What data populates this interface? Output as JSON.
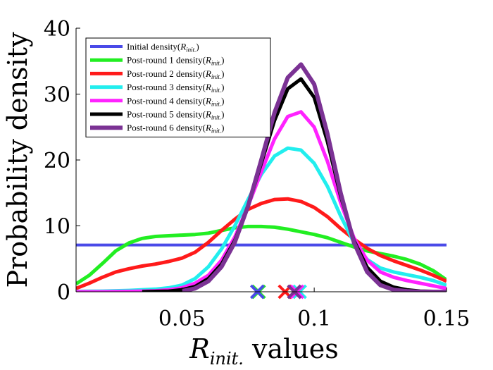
{
  "chart_data": {
    "type": "line",
    "title": "",
    "xlabel": "R_init. values",
    "xlabel_parts": {
      "main": "R",
      "sub": "init.",
      "rest": " values"
    },
    "ylabel": "Probability density",
    "xlim": [
      0.01,
      0.15
    ],
    "ylim": [
      0,
      40
    ],
    "xticks": [
      0.05,
      0.1,
      0.15
    ],
    "xtick_labels": [
      "0.05",
      "0.1",
      "0.15"
    ],
    "yticks": [
      0,
      10,
      20,
      30,
      40
    ],
    "ytick_labels": [
      "0",
      "10",
      "20",
      "30",
      "40"
    ],
    "grid": false,
    "legend_position": "top-left",
    "series": [
      {
        "name": "Initial density(R_init.)",
        "legend_parts": {
          "main": "Initial density(",
          "sym": "R",
          "sub": "init.",
          "end": ")"
        },
        "color": "#4a4ae8",
        "x": [
          0.01,
          0.15
        ],
        "y": [
          7.1,
          7.1
        ]
      },
      {
        "name": "Post-round 1 density(R_init.)",
        "legend_parts": {
          "main": "Post-round 1 density(",
          "sym": "R",
          "sub": "init.",
          "end": ")"
        },
        "color": "#22ee22",
        "x": [
          0.01,
          0.015,
          0.02,
          0.025,
          0.03,
          0.035,
          0.04,
          0.045,
          0.05,
          0.055,
          0.06,
          0.065,
          0.07,
          0.075,
          0.08,
          0.085,
          0.09,
          0.095,
          0.1,
          0.105,
          0.11,
          0.115,
          0.12,
          0.125,
          0.13,
          0.135,
          0.14,
          0.145,
          0.15
        ],
        "y": [
          1.2,
          2.5,
          4.3,
          6.2,
          7.4,
          8.1,
          8.4,
          8.5,
          8.6,
          8.7,
          8.9,
          9.3,
          9.7,
          9.9,
          9.9,
          9.8,
          9.5,
          9.1,
          8.7,
          8.2,
          7.5,
          6.8,
          6.2,
          5.8,
          5.4,
          4.9,
          4.2,
          3.2,
          1.8
        ]
      },
      {
        "name": "Post-round 2 density(R_init.)",
        "legend_parts": {
          "main": "Post-round 2 density(",
          "sym": "R",
          "sub": "init.",
          "end": ")"
        },
        "color": "#ff1a1a",
        "x": [
          0.01,
          0.015,
          0.02,
          0.025,
          0.03,
          0.035,
          0.04,
          0.045,
          0.05,
          0.055,
          0.06,
          0.065,
          0.07,
          0.075,
          0.08,
          0.085,
          0.09,
          0.095,
          0.1,
          0.105,
          0.11,
          0.115,
          0.12,
          0.125,
          0.13,
          0.135,
          0.14,
          0.145,
          0.15
        ],
        "y": [
          0.5,
          1.3,
          2.2,
          3.0,
          3.5,
          3.9,
          4.2,
          4.6,
          5.1,
          6.0,
          7.5,
          9.3,
          11.0,
          12.5,
          13.4,
          14.0,
          14.1,
          13.7,
          12.8,
          11.4,
          9.6,
          8.0,
          6.6,
          5.5,
          4.7,
          4.0,
          3.3,
          2.5,
          1.6
        ]
      },
      {
        "name": "Post-round 3 density(R_init.)",
        "legend_parts": {
          "main": "Post-round 3 density(",
          "sym": "R",
          "sub": "init.",
          "end": ")"
        },
        "color": "#22eeee",
        "x": [
          0.01,
          0.02,
          0.03,
          0.04,
          0.045,
          0.05,
          0.055,
          0.06,
          0.065,
          0.07,
          0.075,
          0.08,
          0.085,
          0.09,
          0.095,
          0.1,
          0.105,
          0.11,
          0.115,
          0.12,
          0.125,
          0.13,
          0.135,
          0.14,
          0.145,
          0.15
        ],
        "y": [
          0.05,
          0.1,
          0.2,
          0.4,
          0.6,
          1.0,
          2.0,
          3.8,
          6.5,
          10.0,
          14.0,
          17.8,
          20.6,
          21.8,
          21.5,
          19.5,
          16.0,
          11.5,
          7.5,
          4.9,
          3.6,
          3.0,
          2.6,
          2.2,
          1.7,
          1.0
        ]
      },
      {
        "name": "Post-round 4 density(R_init.)",
        "legend_parts": {
          "main": "Post-round 4 density(",
          "sym": "R",
          "sub": "init.",
          "end": ")"
        },
        "color": "#ff22ff",
        "x": [
          0.01,
          0.02,
          0.03,
          0.04,
          0.045,
          0.05,
          0.055,
          0.06,
          0.065,
          0.07,
          0.075,
          0.08,
          0.085,
          0.09,
          0.095,
          0.1,
          0.105,
          0.11,
          0.115,
          0.12,
          0.125,
          0.13,
          0.135,
          0.14,
          0.145,
          0.15
        ],
        "y": [
          0.0,
          0.0,
          0.05,
          0.15,
          0.3,
          0.6,
          1.3,
          2.5,
          4.8,
          8.3,
          13.0,
          18.2,
          23.2,
          26.6,
          27.3,
          25.0,
          19.8,
          13.5,
          8.2,
          4.8,
          3.0,
          2.2,
          1.7,
          1.3,
          0.9,
          0.5
        ]
      },
      {
        "name": "Post-round 5 density(R_init.)",
        "legend_parts": {
          "main": "Post-round 5 density(",
          "sym": "R",
          "sub": "init.",
          "end": ")"
        },
        "color": "#000000",
        "x": [
          0.035,
          0.04,
          0.045,
          0.05,
          0.055,
          0.06,
          0.065,
          0.07,
          0.075,
          0.08,
          0.085,
          0.09,
          0.095,
          0.1,
          0.105,
          0.11,
          0.115,
          0.12,
          0.125,
          0.13,
          0.135,
          0.14,
          0.145,
          0.15
        ],
        "y": [
          0.0,
          0.05,
          0.1,
          0.3,
          0.8,
          2.0,
          4.2,
          7.8,
          13.0,
          19.5,
          26.0,
          30.8,
          32.3,
          29.5,
          22.8,
          14.5,
          7.8,
          3.7,
          1.6,
          0.7,
          0.3,
          0.1,
          0.05,
          0.0
        ]
      },
      {
        "name": "Post-round 6 density(R_init.)",
        "legend_parts": {
          "main": "Post-round 6 density(",
          "sym": "R",
          "sub": "init.",
          "end": ")"
        },
        "color": "#7b3294",
        "x": [
          0.05,
          0.055,
          0.06,
          0.065,
          0.07,
          0.075,
          0.08,
          0.085,
          0.09,
          0.095,
          0.1,
          0.105,
          0.11,
          0.115,
          0.12,
          0.125,
          0.13,
          0.135,
          0.14,
          0.145,
          0.15
        ],
        "y": [
          0.1,
          0.5,
          1.6,
          3.8,
          7.5,
          13.0,
          20.0,
          27.2,
          32.5,
          34.5,
          31.5,
          24.0,
          15.0,
          7.5,
          3.0,
          1.0,
          0.3,
          0.1,
          0.0,
          0.0,
          0.0
        ]
      }
    ],
    "markers": [
      {
        "x": 0.079,
        "y": 0,
        "color": "#22ee22"
      },
      {
        "x": 0.0785,
        "y": 0,
        "color": "#4a4ae8"
      },
      {
        "x": 0.089,
        "y": 0,
        "color": "#ff1a1a"
      },
      {
        "x": 0.0945,
        "y": 0,
        "color": "#22eeee"
      },
      {
        "x": 0.0935,
        "y": 0,
        "color": "#ff22ff"
      },
      {
        "x": 0.0925,
        "y": 0,
        "color": "#000000"
      },
      {
        "x": 0.0925,
        "y": 0,
        "color": "#7b3294"
      }
    ]
  }
}
